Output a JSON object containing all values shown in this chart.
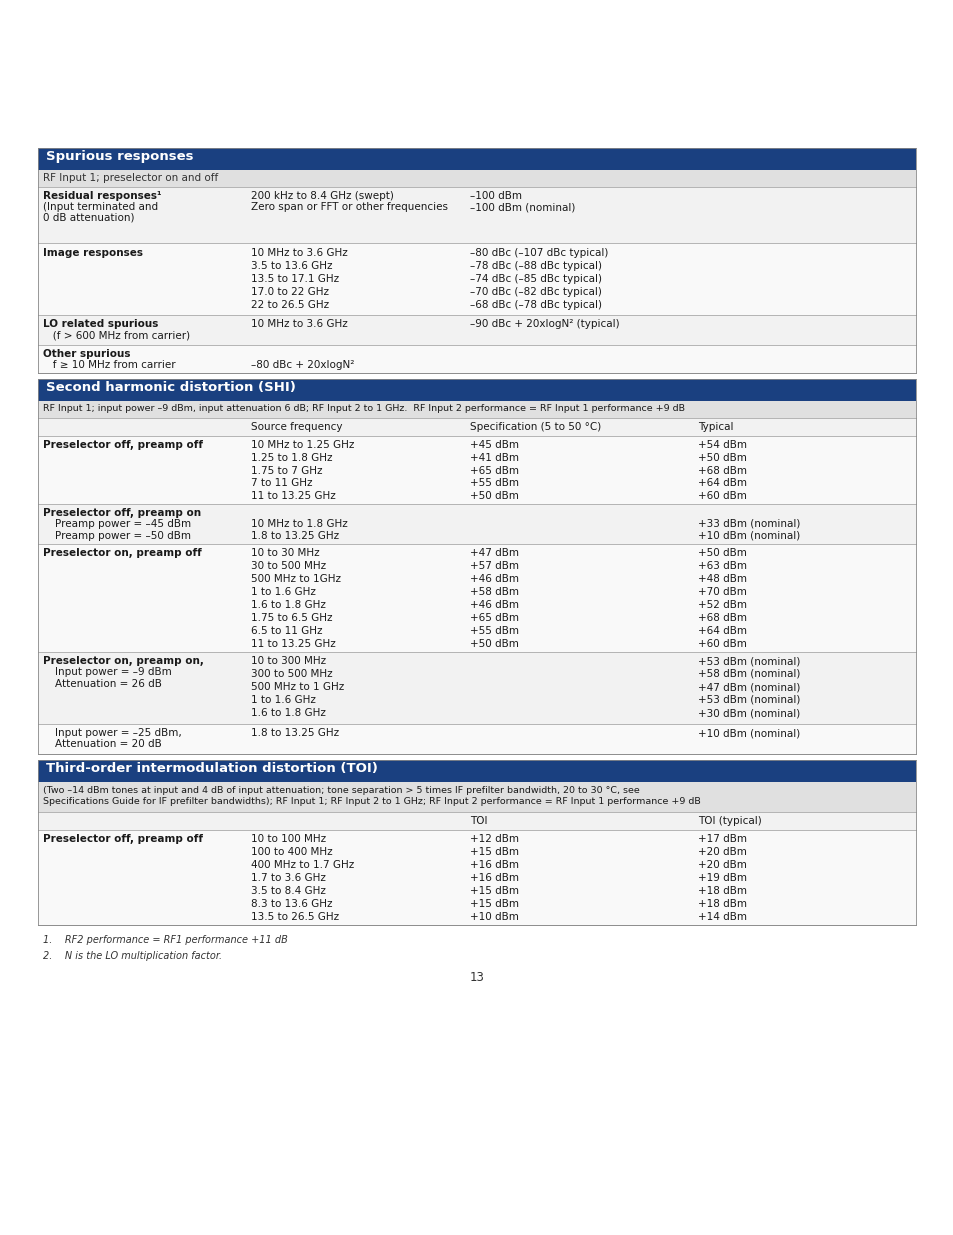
{
  "page_bg": "#ffffff",
  "header_bg": "#1a4080",
  "header_text_color": "#ffffff",
  "subheader_bg": "#e8e8e8",
  "text_color": "#222222",
  "footnote1": "1.    RF2 performance = RF1 performance +11 dB",
  "footnote2": "2.    N is the LO multiplication factor.",
  "page_number": "13",
  "section1_title": "Spurious responses",
  "section2_title": "Second harmonic distortion (SHI)",
  "section3_title": "Third-order intermodulation distortion (TOI)"
}
